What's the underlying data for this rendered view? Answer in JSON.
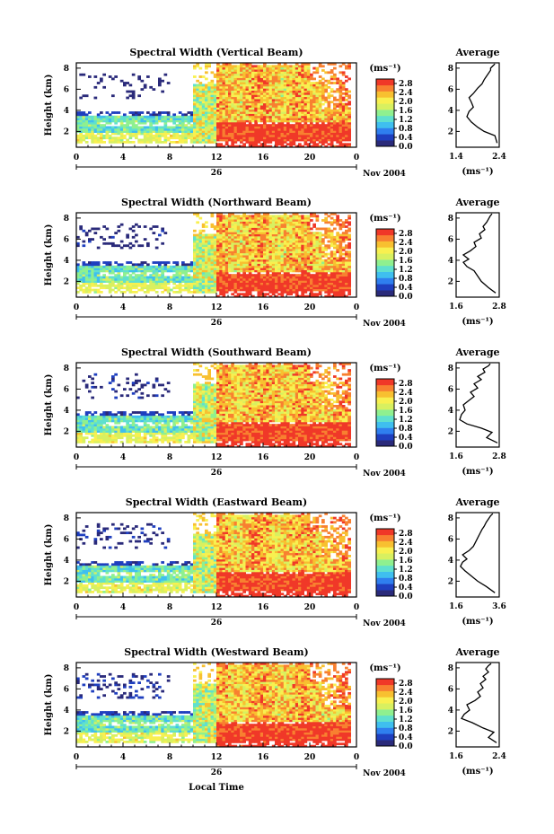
{
  "figure": {
    "xlabel": "Local Time",
    "date_label": "Nov 2004",
    "day_label": "26",
    "colorbar_unit": "(ms⁻¹)",
    "avg_title": "Average",
    "avg_unit": "(ms⁻¹)",
    "ylabel": "Height (km)"
  },
  "colors": {
    "colormap": [
      "#2a2a7a",
      "#1f3fbf",
      "#2f7fef",
      "#3fbfef",
      "#5fe0cf",
      "#8ff08f",
      "#d8f060",
      "#f8f050",
      "#f8c030",
      "#f88030",
      "#f03828"
    ]
  },
  "chart_data": [
    {
      "type": "heatmap",
      "title": "Spectral Width (Vertical Beam)",
      "x_ticks": [
        "0",
        "4",
        "8",
        "12",
        "16",
        "20",
        "0"
      ],
      "y_ticks": [
        "2",
        "4",
        "6",
        "8"
      ],
      "xlim": [
        0,
        24
      ],
      "ylim": [
        0.5,
        8.5
      ],
      "colorbar_ticks": [
        "0.0",
        "0.4",
        "0.8",
        "1.2",
        "1.6",
        "2.0",
        "2.4",
        "2.8"
      ],
      "colorbar_range": [
        0.0,
        3.0
      ],
      "average": {
        "type": "line",
        "xlim": [
          1.4,
          2.4
        ],
        "x_ticks": [
          "1.4",
          "2.4"
        ],
        "ylim": [
          0.5,
          8.5
        ],
        "y_ticks": [
          "2",
          "4",
          "6",
          "8"
        ],
        "x": [
          2.35,
          2.3,
          2.05,
          1.9,
          1.75,
          1.65,
          1.7,
          1.8,
          1.75,
          1.7,
          1.8,
          1.9,
          2.0,
          2.05,
          2.1,
          2.15,
          2.2,
          2.2,
          2.25,
          2.3
        ],
        "y": [
          0.9,
          1.6,
          2.0,
          2.4,
          2.9,
          3.4,
          3.9,
          4.3,
          4.8,
          5.2,
          5.6,
          6.1,
          6.5,
          6.9,
          7.2,
          7.5,
          7.8,
          8.0,
          8.2,
          8.4
        ]
      }
    },
    {
      "type": "heatmap",
      "title": "Spectral Width (Northward Beam)",
      "x_ticks": [
        "0",
        "4",
        "8",
        "12",
        "16",
        "20",
        "0"
      ],
      "y_ticks": [
        "2",
        "4",
        "6",
        "8"
      ],
      "xlim": [
        0,
        24
      ],
      "ylim": [
        0.5,
        8.5
      ],
      "colorbar_ticks": [
        "0.0",
        "0.4",
        "0.8",
        "1.2",
        "1.6",
        "2.0",
        "2.4",
        "2.8"
      ],
      "colorbar_range": [
        0.0,
        3.0
      ],
      "average": {
        "type": "line",
        "xlim": [
          1.6,
          2.8
        ],
        "x_ticks": [
          "1.6",
          "2.8"
        ],
        "ylim": [
          0.5,
          8.5
        ],
        "y_ticks": [
          "2",
          "4",
          "6",
          "8"
        ],
        "x": [
          2.7,
          2.5,
          2.3,
          2.2,
          2.1,
          1.9,
          1.8,
          1.95,
          1.8,
          2.0,
          2.15,
          2.1,
          2.3,
          2.25,
          2.4,
          2.35,
          2.45,
          2.5,
          2.55,
          2.6
        ],
        "y": [
          0.9,
          1.4,
          2.0,
          2.5,
          3.0,
          3.4,
          3.8,
          4.1,
          4.5,
          4.9,
          5.3,
          5.7,
          6.1,
          6.5,
          6.9,
          7.2,
          7.6,
          7.9,
          8.2,
          8.4
        ]
      }
    },
    {
      "type": "heatmap",
      "title": "Spectral Width (Southward Beam)",
      "x_ticks": [
        "0",
        "4",
        "8",
        "12",
        "16",
        "20",
        "0"
      ],
      "y_ticks": [
        "2",
        "4",
        "6",
        "8"
      ],
      "xlim": [
        0,
        24
      ],
      "ylim": [
        0.5,
        8.5
      ],
      "colorbar_ticks": [
        "0.0",
        "0.4",
        "0.8",
        "1.2",
        "1.6",
        "2.0",
        "2.4",
        "2.8"
      ],
      "colorbar_range": [
        0.0,
        3.0
      ],
      "average": {
        "type": "line",
        "xlim": [
          1.6,
          2.8
        ],
        "x_ticks": [
          "1.6",
          "2.8"
        ],
        "ylim": [
          0.5,
          8.5
        ],
        "y_ticks": [
          "2",
          "4",
          "6",
          "8"
        ],
        "x": [
          2.75,
          2.45,
          2.6,
          2.3,
          1.9,
          1.7,
          1.75,
          1.85,
          1.8,
          1.95,
          2.1,
          2.0,
          2.2,
          2.1,
          2.3,
          2.2,
          2.4,
          2.35,
          2.5,
          2.55
        ],
        "y": [
          0.9,
          1.4,
          1.9,
          2.3,
          2.7,
          3.1,
          3.6,
          4.0,
          4.5,
          4.9,
          5.3,
          5.7,
          6.1,
          6.5,
          6.9,
          7.2,
          7.6,
          7.9,
          8.2,
          8.4
        ]
      }
    },
    {
      "type": "heatmap",
      "title": "Spectral Width (Eastward Beam)",
      "x_ticks": [
        "0",
        "4",
        "8",
        "12",
        "16",
        "20",
        "0"
      ],
      "y_ticks": [
        "2",
        "4",
        "6",
        "8"
      ],
      "xlim": [
        0,
        24
      ],
      "ylim": [
        0.5,
        8.5
      ],
      "colorbar_ticks": [
        "0.0",
        "0.4",
        "0.8",
        "1.2",
        "1.6",
        "2.0",
        "2.4",
        "2.8"
      ],
      "colorbar_range": [
        0.0,
        3.0
      ],
      "average": {
        "type": "line",
        "xlim": [
          1.6,
          3.6
        ],
        "x_ticks": [
          "1.6",
          "3.6"
        ],
        "ylim": [
          0.5,
          8.5
        ],
        "y_ticks": [
          "2",
          "4",
          "6",
          "8"
        ],
        "x": [
          3.4,
          3.0,
          2.6,
          2.3,
          2.0,
          1.8,
          1.9,
          2.1,
          1.9,
          2.2,
          2.4,
          2.5,
          2.6,
          2.7,
          2.8,
          2.9,
          3.0,
          3.1,
          3.2,
          3.3
        ],
        "y": [
          0.9,
          1.5,
          2.0,
          2.5,
          3.0,
          3.4,
          3.8,
          4.1,
          4.5,
          4.9,
          5.3,
          5.7,
          6.1,
          6.5,
          6.9,
          7.2,
          7.6,
          7.9,
          8.2,
          8.4
        ]
      }
    },
    {
      "type": "heatmap",
      "title": "Spectral Width (Westward Beam)",
      "x_ticks": [
        "0",
        "4",
        "8",
        "12",
        "16",
        "20",
        "0"
      ],
      "y_ticks": [
        "2",
        "4",
        "6",
        "8"
      ],
      "xlim": [
        0,
        24
      ],
      "ylim": [
        0.5,
        8.5
      ],
      "colorbar_ticks": [
        "0.0",
        "0.4",
        "0.8",
        "1.2",
        "1.6",
        "2.0",
        "2.4",
        "2.8"
      ],
      "colorbar_range": [
        0.0,
        3.0
      ],
      "average": {
        "type": "line",
        "xlim": [
          1.6,
          2.4
        ],
        "x_ticks": [
          "1.6",
          "2.4"
        ],
        "ylim": [
          0.5,
          8.5
        ],
        "y_ticks": [
          "2",
          "4",
          "6",
          "8"
        ],
        "x": [
          2.35,
          2.2,
          2.3,
          2.1,
          1.9,
          1.7,
          1.75,
          1.85,
          1.8,
          1.95,
          2.05,
          2.0,
          2.1,
          2.05,
          2.15,
          2.1,
          2.2,
          2.15,
          2.2,
          2.25
        ],
        "y": [
          0.9,
          1.4,
          1.9,
          2.3,
          2.8,
          3.2,
          3.6,
          4.0,
          4.5,
          4.9,
          5.3,
          5.7,
          6.1,
          6.5,
          6.9,
          7.2,
          7.6,
          7.9,
          8.2,
          8.4
        ]
      }
    }
  ]
}
